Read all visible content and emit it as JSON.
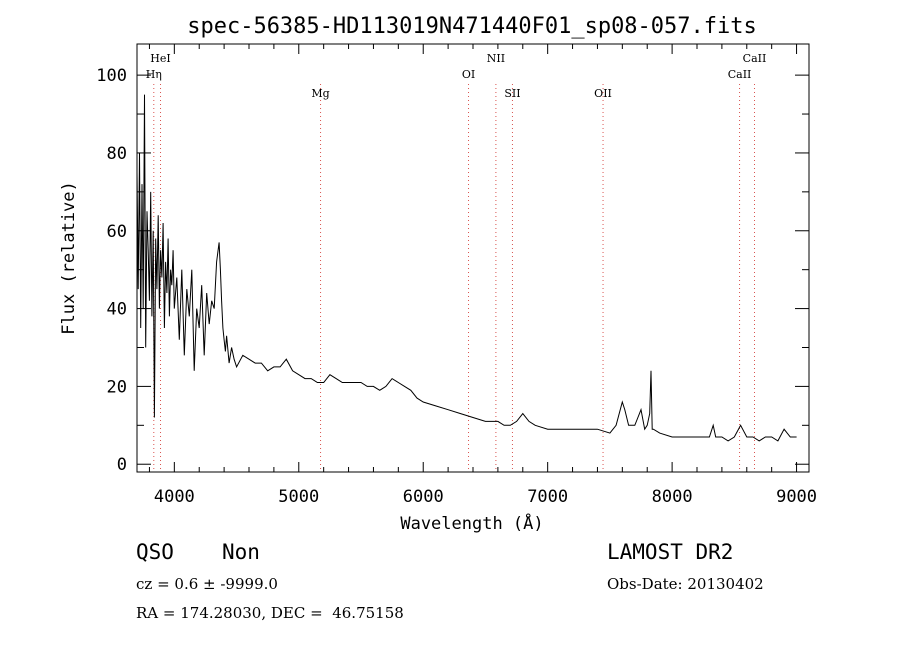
{
  "chart_data": {
    "type": "line",
    "title": "spec-56385-HD113019N471440F01_sp08-057.fits",
    "xlabel": "Wavelength (Å)",
    "ylabel": "Flux (relative)",
    "xlim": [
      3700,
      9100
    ],
    "ylim": [
      -2,
      108
    ],
    "xticks": [
      4000,
      5000,
      6000,
      7000,
      8000,
      9000
    ],
    "yticks": [
      0,
      20,
      40,
      60,
      80,
      100
    ],
    "grid": false,
    "line_color": "#000000",
    "marker_line_color": "#d9534f",
    "lines": [
      {
        "name": "HeI",
        "x": 3889
      },
      {
        "name": "Hη",
        "x": 3835
      },
      {
        "name": "Mg",
        "x": 5175
      },
      {
        "name": "OI",
        "x": 6364
      },
      {
        "name": "NII",
        "x": 6584
      },
      {
        "name": "SII",
        "x": 6717
      },
      {
        "name": "OII",
        "x": 7445
      },
      {
        "name": "CaII",
        "x": 8542
      },
      {
        "name": "CaII",
        "x": 8662
      }
    ],
    "series": [
      {
        "x": [
          3700,
          3710,
          3720,
          3730,
          3740,
          3750,
          3760,
          3770,
          3780,
          3790,
          3800,
          3810,
          3820,
          3830,
          3840,
          3850,
          3860,
          3870,
          3880,
          3890,
          3900,
          3910,
          3920,
          3930,
          3940,
          3950,
          3960,
          3970,
          3980,
          3990,
          4000,
          4020,
          4040,
          4060,
          4080,
          4100,
          4120,
          4140,
          4160,
          4180,
          4200,
          4220,
          4240,
          4260,
          4280,
          4300,
          4320,
          4340,
          4360,
          4370,
          4380,
          4390,
          4400,
          4410,
          4420,
          4440,
          4460,
          4480,
          4500,
          4550,
          4600,
          4650,
          4700,
          4750,
          4800,
          4850,
          4900,
          4950,
          5000,
          5050,
          5100,
          5150,
          5200,
          5250,
          5300,
          5350,
          5400,
          5450,
          5500,
          5550,
          5600,
          5650,
          5700,
          5750,
          5800,
          5850,
          5900,
          5950,
          6000,
          6100,
          6200,
          6300,
          6400,
          6500,
          6600,
          6650,
          6700,
          6750,
          6800,
          6850,
          6900,
          7000,
          7100,
          7200,
          7300,
          7400,
          7500,
          7550,
          7600,
          7620,
          7650,
          7700,
          7750,
          7780,
          7800,
          7820,
          7830,
          7840,
          7850,
          7900,
          8000,
          8100,
          8200,
          8300,
          8330,
          8350,
          8400,
          8450,
          8500,
          8550,
          8600,
          8650,
          8700,
          8750,
          8800,
          8850,
          8900,
          8950,
          9000
        ],
        "y": [
          75,
          45,
          80,
          35,
          72,
          40,
          95,
          30,
          65,
          55,
          42,
          70,
          38,
          60,
          12,
          58,
          45,
          64,
          40,
          55,
          48,
          62,
          35,
          52,
          44,
          58,
          38,
          50,
          46,
          55,
          40,
          48,
          32,
          50,
          28,
          45,
          38,
          50,
          24,
          40,
          35,
          46,
          28,
          44,
          36,
          42,
          40,
          52,
          57,
          50,
          42,
          35,
          32,
          29,
          33,
          26,
          30,
          27,
          25,
          28,
          27,
          26,
          26,
          24,
          25,
          25,
          27,
          24,
          23,
          22,
          22,
          21,
          21,
          23,
          22,
          21,
          21,
          21,
          21,
          20,
          20,
          19,
          20,
          22,
          21,
          20,
          19,
          17,
          16,
          15,
          14,
          13,
          12,
          11,
          11,
          10,
          10,
          11,
          13,
          11,
          10,
          9,
          9,
          9,
          9,
          9,
          8,
          10,
          16,
          14,
          10,
          10,
          14,
          9,
          10,
          13,
          24,
          9,
          9,
          8,
          7,
          7,
          7,
          7,
          10,
          7,
          7,
          6,
          7,
          10,
          7,
          7,
          6,
          7,
          7,
          6,
          9,
          7,
          7
        ]
      }
    ]
  },
  "info": {
    "class": "QSO",
    "subclass": "Non",
    "survey": "LAMOST DR2",
    "cz": "cz = 0.6 ± -9999.0",
    "obs_date": "Obs-Date: 20130402",
    "radec": "RA = 174.28030, DEC =  46.75158"
  }
}
